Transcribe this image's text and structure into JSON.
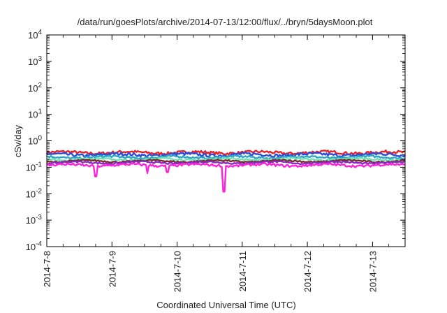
{
  "chart_data": {
    "type": "line",
    "title": "/data/run/goesPlots/archive/2014-07-13/12:00/flux/../bryn/5daysMoon.plot",
    "xlabel": "Coordinated Universal Time (UTC)",
    "ylabel": "cSv/day",
    "yscale": "log",
    "ylim": [
      0.0001,
      10000
    ],
    "xlim": [
      "2014-07-08T00:00",
      "2014-07-13T12:00"
    ],
    "grid": false,
    "legend": "none",
    "y_ticks": [
      {
        "base": "10",
        "exp": "-4"
      },
      {
        "base": "10",
        "exp": "-3"
      },
      {
        "base": "10",
        "exp": "-2"
      },
      {
        "base": "10",
        "exp": "-1"
      },
      {
        "base": "10",
        "exp": "0"
      },
      {
        "base": "10",
        "exp": "1"
      },
      {
        "base": "10",
        "exp": "2"
      },
      {
        "base": "10",
        "exp": "3"
      },
      {
        "base": "10",
        "exp": "4"
      }
    ],
    "x_ticks": [
      "2014-7-8",
      "2014-7-9",
      "2014-7-10",
      "2014-7-11",
      "2014-7-12",
      "2014-7-13"
    ],
    "series": [
      {
        "color": "#e8202a",
        "base": 0.36,
        "jitter": 0.12
      },
      {
        "color": "#2b4cd8",
        "base": 0.3,
        "jitter": 0.13
      },
      {
        "color": "#2aa7c8",
        "base": 0.24,
        "jitter": 0.09
      },
      {
        "color": "#6fe0b0",
        "base": 0.2,
        "jitter": 0.08
      },
      {
        "color": "#7a2a2a",
        "base": 0.17,
        "jitter": 0.07
      },
      {
        "color": "#8a2bbf",
        "base": 0.15,
        "jitter": 0.07
      },
      {
        "color": "#ff22dd",
        "base": 0.12,
        "jitter": 0.1
      }
    ],
    "dips": [
      {
        "day": 0.75,
        "value": 0.045
      },
      {
        "day": 1.55,
        "value": 0.06
      },
      {
        "day": 1.85,
        "value": 0.065
      },
      {
        "day": 2.72,
        "value": 0.012
      }
    ]
  }
}
